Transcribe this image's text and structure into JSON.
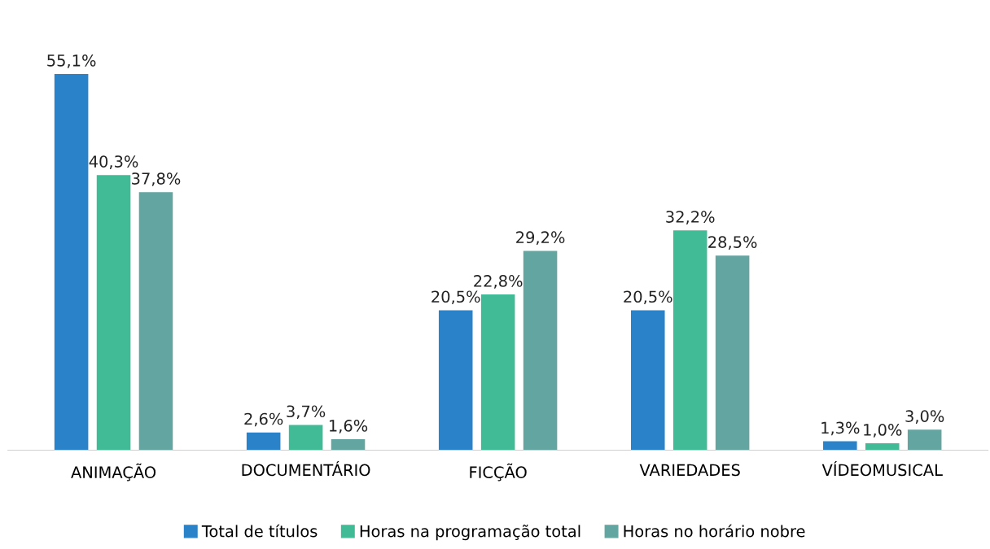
{
  "chart_data": {
    "type": "bar",
    "categories": [
      "ANIMAÇÃO",
      "DOCUMENTÁRIO",
      "FICÇÃO",
      "VARIEDADES",
      "VÍDEOMUSICAL"
    ],
    "series": [
      {
        "name": "Total de títulos",
        "color": "#2a83c8",
        "values": [
          55.1,
          2.6,
          20.5,
          20.5,
          1.3
        ],
        "value_labels": [
          "55,1%",
          "2,6%",
          "20,5%",
          "20,5%",
          "1,3%"
        ]
      },
      {
        "name": "Horas na programação total",
        "color": "#41bb96",
        "values": [
          40.3,
          3.7,
          22.8,
          32.2,
          1.0
        ],
        "value_labels": [
          "40,3%",
          "3,7%",
          "22,8%",
          "32,2%",
          "1,0%"
        ]
      },
      {
        "name": "Horas no horário nobre",
        "color": "#63a5a0",
        "values": [
          37.8,
          1.6,
          29.2,
          28.5,
          3.0
        ],
        "value_labels": [
          "37,8%",
          "1,6%",
          "29,2%",
          "28,5%",
          "3,0%"
        ]
      }
    ],
    "tick_labels": "x",
    "grid": false,
    "legend": "bottom"
  }
}
